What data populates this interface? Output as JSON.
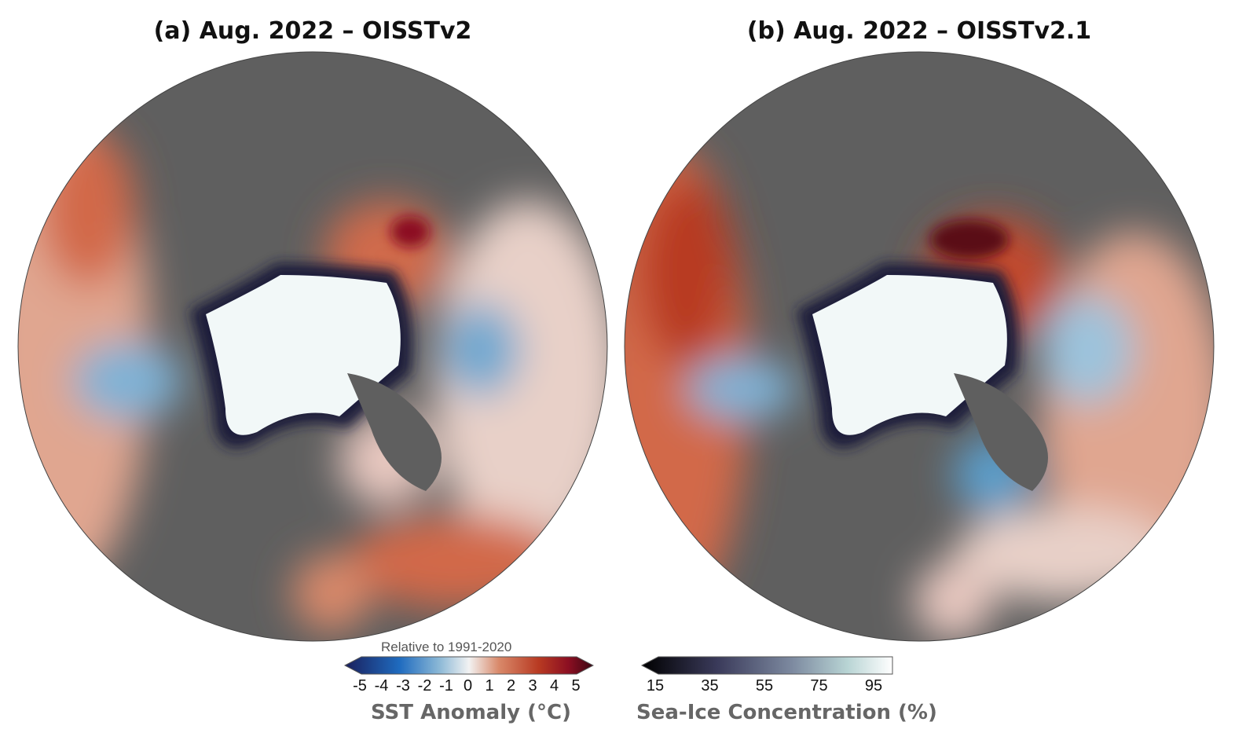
{
  "panels": [
    {
      "title": "(a) Aug. 2022 – OISSTv2"
    },
    {
      "title": "(b) Aug. 2022 – OISSTv2.1"
    }
  ],
  "colorbars": {
    "sst": {
      "subtitle": "Relative to 1991-2020",
      "ticks": [
        "-5",
        "-4",
        "-3",
        "-2",
        "-1",
        "0",
        "1",
        "2",
        "3",
        "4",
        "5"
      ],
      "title": "SST Anomaly (°C)",
      "range": [
        -5,
        5
      ],
      "extend": "both",
      "colors": [
        "#1a1f5c",
        "#1f6bbf",
        "#8bb8d6",
        "#f2f2f2",
        "#d9896a",
        "#b83a22",
        "#8c0f22",
        "#3a0612"
      ]
    },
    "ice": {
      "ticks": [
        "15",
        "35",
        "55",
        "75",
        "95"
      ],
      "title": "Sea-Ice Concentration (%)",
      "range": [
        15,
        100
      ],
      "extend": "min",
      "colors": [
        "#000000",
        "#3a3a5a",
        "#7d8aa0",
        "#b8d4d4",
        "#ffffff"
      ]
    }
  },
  "colors": {
    "land": "#5f5f5f",
    "lakes": "#a0a0a0",
    "warm": "#d2694a",
    "cool": "#5b9fcc",
    "ice": "#f2f8f8"
  }
}
